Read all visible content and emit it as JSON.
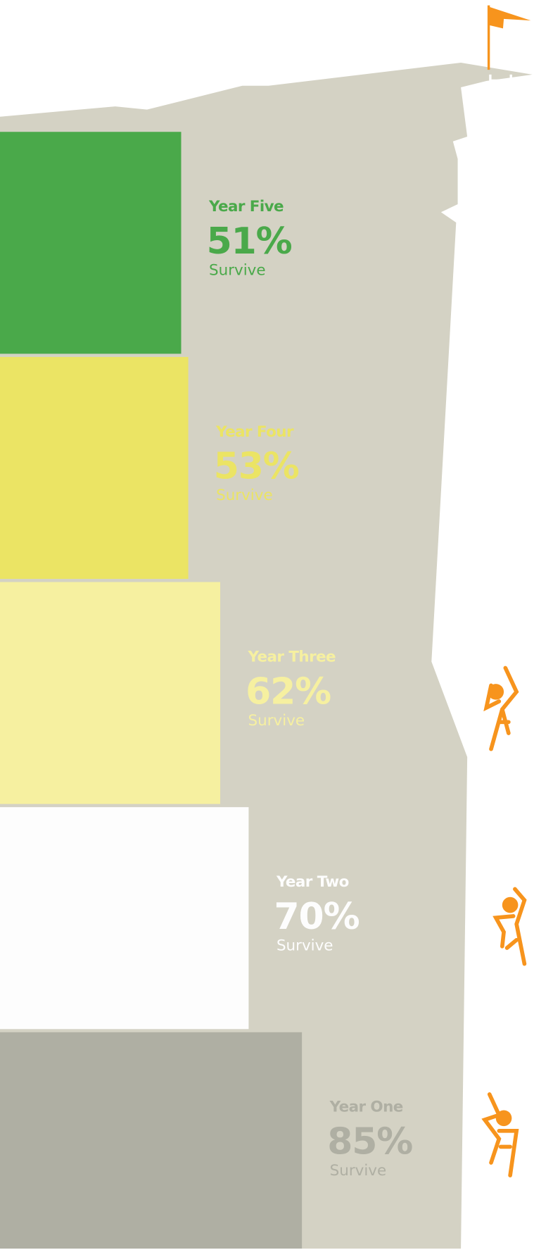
{
  "chart_data": {
    "type": "bar",
    "orientation": "horizontal",
    "categories": [
      "Year Five",
      "Year Four",
      "Year Three",
      "Year Two",
      "Year One"
    ],
    "values": [
      51,
      53,
      62,
      70,
      85
    ],
    "value_labels": [
      "51%",
      "53%",
      "62%",
      "70%",
      "85%"
    ],
    "note": "Survive",
    "colors": [
      "#4aa94a",
      "#ebe464",
      "#f6f0a0",
      "#fdfdfd",
      "#afafa3"
    ]
  }
}
